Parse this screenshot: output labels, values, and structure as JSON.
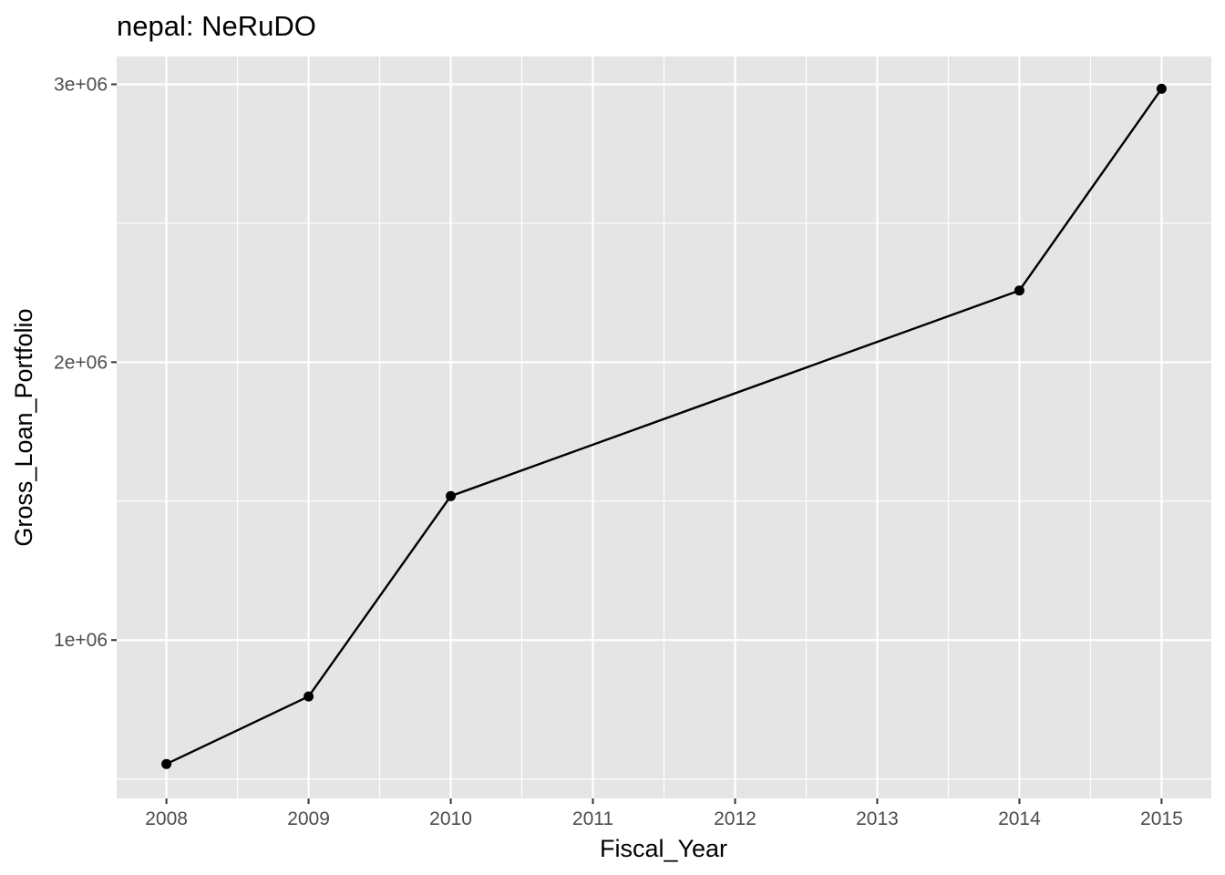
{
  "chart_data": {
    "type": "line",
    "title": "nepal:  NeRuDO",
    "xlabel": "Fiscal_Year",
    "ylabel": "Gross_Loan_Portfolio",
    "x_ticks": [
      "2008",
      "2009",
      "2010",
      "2011",
      "2012",
      "2013",
      "2014",
      "2015"
    ],
    "y_ticks": [
      {
        "value": 1000000,
        "label": "1e+06"
      },
      {
        "value": 2000000,
        "label": "2e+06"
      },
      {
        "value": 3000000,
        "label": "3e+06"
      }
    ],
    "y_minor": [
      500000,
      1500000,
      2500000
    ],
    "xlim": [
      2007.65,
      2015.35
    ],
    "ylim": [
      430000,
      3100000
    ],
    "grid": true,
    "series": [
      {
        "x": [
          2008,
          2009,
          2010,
          2014,
          2015
        ],
        "y": [
          554000,
          797000,
          1518000,
          2258000,
          2984000
        ]
      }
    ],
    "colors": {
      "panel_bg": "#e5e5e5",
      "grid": "#ffffff",
      "line": "#000000",
      "point": "#000000",
      "tick_text": "#4d4d4d",
      "tick_mark": "#333333"
    }
  }
}
